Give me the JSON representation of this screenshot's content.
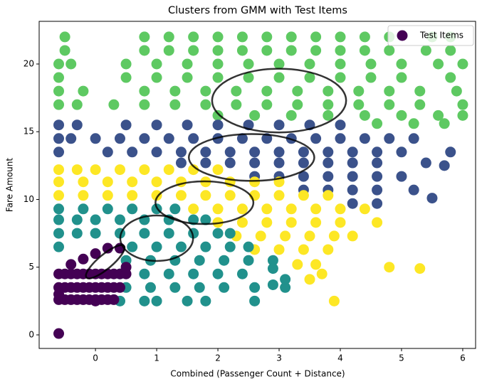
{
  "chart_data": {
    "type": "scatter",
    "title": "Clusters from GMM with Test Items",
    "x_label": "Combined (Passenger Count + Distance)",
    "y_label": "Fare Amount",
    "xlim": [
      -0.92,
      6.21
    ],
    "ylim": [
      -1.0,
      23.15
    ],
    "xticks": [
      0,
      1,
      2,
      3,
      4,
      5,
      6
    ],
    "yticks": [
      0,
      5,
      10,
      15,
      20
    ],
    "legend": "upper right",
    "series": [
      {
        "color": "#5ec962",
        "x": [
          -0.5,
          0.8,
          1.2,
          1.6,
          2.0,
          2.4,
          2.8,
          3.2,
          3.6,
          4.0,
          4.4,
          4.8,
          5.5,
          5.8,
          -0.5,
          0.8,
          1.2,
          1.6,
          2.0,
          2.4,
          2.8,
          3.2,
          3.6,
          4.0,
          4.4,
          4.8,
          5.4,
          5.8,
          -0.6,
          -0.4,
          0.5,
          1.0,
          1.5,
          2.0,
          2.5,
          3.0,
          3.5,
          4.0,
          4.5,
          5.0,
          5.6,
          6.0,
          -0.6,
          0.5,
          1.0,
          1.5,
          2.0,
          2.5,
          3.0,
          3.5,
          4.0,
          4.5,
          5.0,
          5.8,
          -0.6,
          -0.2,
          0.8,
          1.3,
          1.8,
          2.3,
          2.8,
          3.3,
          3.8,
          4.3,
          4.8,
          5.3,
          5.9,
          -0.6,
          -0.3,
          0.3,
          0.8,
          1.3,
          1.8,
          2.3,
          2.8,
          3.3,
          3.8,
          4.3,
          4.8,
          5.3,
          6.0,
          2.0,
          2.6,
          3.2,
          3.8,
          4.4,
          5.0,
          5.6,
          6.0,
          4.6,
          5.2,
          5.7
        ],
        "values": [
          22,
          22,
          22,
          22,
          22,
          22,
          22,
          22,
          22,
          22,
          22,
          22,
          22,
          22,
          21,
          21,
          21,
          21,
          21,
          21,
          21,
          21,
          21,
          21,
          21,
          21,
          21,
          21,
          20,
          20,
          20,
          20,
          20,
          20,
          20,
          20,
          20,
          20,
          20,
          20,
          20,
          20,
          19,
          19,
          19,
          19,
          19,
          19,
          19,
          19,
          19,
          19,
          19,
          19,
          18,
          18,
          18,
          18,
          18,
          18,
          18,
          18,
          18,
          18,
          18,
          18,
          18,
          17,
          17,
          17,
          17,
          17,
          17,
          17,
          17,
          17,
          17,
          17,
          17,
          17,
          17,
          16.2,
          16.2,
          16.2,
          16.2,
          16.2,
          16.2,
          16.2,
          16.2,
          15.6,
          15.6,
          15.6
        ]
      },
      {
        "color": "#3b528b",
        "x": [
          -0.6,
          -0.3,
          0.5,
          1.0,
          1.5,
          2.0,
          2.5,
          3.0,
          3.5,
          4.0,
          -0.6,
          -0.4,
          0,
          0.4,
          0.8,
          1.2,
          1.6,
          2.0,
          2.4,
          2.8,
          3.2,
          3.6,
          4.0,
          4.4,
          4.8,
          5.2,
          -0.6,
          0.2,
          0.6,
          1.0,
          1.4,
          1.8,
          2.2,
          2.6,
          3.0,
          3.4,
          3.8,
          4.2,
          4.6,
          5.0,
          5.8,
          1.4,
          1.8,
          2.2,
          2.6,
          3.0,
          3.4,
          3.8,
          4.2,
          4.6,
          5.4,
          2.6,
          3.0,
          3.4,
          3.8,
          4.2,
          4.6,
          5.0,
          3.4,
          3.8,
          4.2,
          4.6,
          5.2,
          4.2,
          4.6,
          5.5,
          5.7
        ],
        "values": [
          15.5,
          15.5,
          15.5,
          15.5,
          15.5,
          15.5,
          15.5,
          15.5,
          15.5,
          15.5,
          14.5,
          14.5,
          14.5,
          14.5,
          14.5,
          14.5,
          14.5,
          14.5,
          14.5,
          14.5,
          14.5,
          14.5,
          14.5,
          14.5,
          14.5,
          14.5,
          13.5,
          13.5,
          13.5,
          13.5,
          13.5,
          13.5,
          13.5,
          13.5,
          13.5,
          13.5,
          13.5,
          13.5,
          13.5,
          13.5,
          13.5,
          12.7,
          12.7,
          12.7,
          12.7,
          12.7,
          12.7,
          12.7,
          12.7,
          12.7,
          12.7,
          11.7,
          11.7,
          11.7,
          11.7,
          11.7,
          11.7,
          11.7,
          10.7,
          10.7,
          10.7,
          10.7,
          10.7,
          9.7,
          9.7,
          10.1,
          12.5
        ]
      },
      {
        "color": "#fde725",
        "x": [
          -0.6,
          -0.3,
          0,
          0.4,
          0.8,
          1.2,
          1.6,
          2.0,
          -0.6,
          -0.2,
          0.2,
          0.6,
          1.0,
          1.4,
          1.8,
          2.2,
          2.6,
          3.0,
          -0.6,
          -0.2,
          0.2,
          0.6,
          1.0,
          1.4,
          1.8,
          2.2,
          2.6,
          3.0,
          3.4,
          3.8,
          1.6,
          2.0,
          2.4,
          2.8,
          3.2,
          3.6,
          4.0,
          4.4,
          2.0,
          2.4,
          2.8,
          3.2,
          3.6,
          4.0,
          4.6,
          2.3,
          2.7,
          3.1,
          3.5,
          3.9,
          4.2,
          2.6,
          3.0,
          3.4,
          3.8,
          3.3,
          3.6,
          4.8,
          5.3,
          3.9,
          3.5,
          3.7
        ],
        "values": [
          12.2,
          12.2,
          12.2,
          12.2,
          12.2,
          12.2,
          12.2,
          12.2,
          11.3,
          11.3,
          11.3,
          11.3,
          11.3,
          11.3,
          11.3,
          11.3,
          11.3,
          11.3,
          10.3,
          10.3,
          10.3,
          10.3,
          10.3,
          10.3,
          10.3,
          10.3,
          10.3,
          10.3,
          10.3,
          10.3,
          9.3,
          9.3,
          9.3,
          9.3,
          9.3,
          9.3,
          9.3,
          9.3,
          8.3,
          8.3,
          8.3,
          8.3,
          8.3,
          8.3,
          8.3,
          7.3,
          7.3,
          7.3,
          7.3,
          7.3,
          7.3,
          6.3,
          6.3,
          6.3,
          6.3,
          5.2,
          5.2,
          5.0,
          4.9,
          2.5,
          4.1,
          4.5
        ]
      },
      {
        "color": "#21918c",
        "x": [
          -0.6,
          -0.2,
          0.2,
          0.6,
          1.0,
          1.3,
          -0.6,
          -0.3,
          0,
          0.4,
          0.8,
          1.2,
          1.6,
          1.8,
          -0.6,
          -0.3,
          0,
          0.4,
          0.8,
          1.2,
          1.6,
          2.0,
          2.2,
          -0.6,
          0.6,
          1.0,
          1.4,
          1.8,
          2.2,
          2.5,
          0.5,
          0.9,
          1.3,
          1.7,
          2.1,
          2.5,
          2.9,
          0.4,
          0.8,
          1.2,
          1.6,
          2.0,
          2.4,
          0.5,
          0.9,
          1.3,
          1.7,
          2.1,
          2.6,
          3.1,
          0.4,
          0.8,
          1.0,
          1.5,
          1.8,
          2.6,
          2.9,
          3.1,
          2.9
        ],
        "values": [
          9.3,
          9.3,
          9.3,
          9.3,
          9.3,
          9.3,
          8.5,
          8.5,
          8.5,
          8.5,
          8.5,
          8.5,
          8.5,
          8.5,
          7.5,
          7.5,
          7.5,
          7.5,
          7.5,
          7.5,
          7.5,
          7.5,
          7.5,
          6.5,
          6.5,
          6.5,
          6.5,
          6.5,
          6.5,
          6.5,
          5.5,
          5.5,
          5.5,
          5.5,
          5.5,
          5.5,
          5.5,
          4.5,
          4.5,
          4.5,
          4.5,
          4.5,
          4.5,
          3.5,
          3.5,
          3.5,
          3.5,
          3.5,
          3.5,
          3.5,
          2.5,
          2.5,
          2.5,
          2.5,
          2.5,
          2.5,
          3.7,
          4.1,
          4.9
        ]
      },
      {
        "color": "#440154",
        "x": [
          -0.6,
          -0.5,
          -0.4,
          -0.3,
          -0.2,
          -0.1,
          0,
          0.1,
          0.2,
          0.3,
          -0.6,
          -0.5,
          -0.4,
          -0.3,
          -0.2,
          -0.1,
          0,
          0.1,
          0.2,
          0.3,
          0.4,
          -0.6,
          -0.5,
          -0.4,
          -0.3,
          -0.2,
          -0.1,
          0,
          0.1,
          0.2,
          0.3,
          0.4,
          0.5,
          -0.4,
          -0.2,
          0,
          0.2,
          0.4,
          -0.6,
          0,
          0.5
        ],
        "values": [
          2.6,
          2.6,
          2.6,
          2.6,
          2.6,
          2.6,
          2.6,
          2.6,
          2.6,
          2.6,
          3.5,
          3.5,
          3.5,
          3.5,
          3.5,
          3.5,
          3.5,
          3.5,
          3.5,
          3.5,
          3.5,
          4.5,
          4.5,
          4.5,
          4.5,
          4.5,
          4.5,
          4.5,
          4.5,
          4.5,
          4.5,
          4.5,
          4.5,
          5.2,
          5.6,
          6.0,
          6.4,
          6.4,
          3.0,
          2.5,
          5.0
        ]
      },
      {
        "name": "Test Items",
        "color": "#440154",
        "x": [
          -0.6
        ],
        "values": [
          0.1
        ]
      }
    ],
    "ellipses": [
      {
        "x": 3.0,
        "y": 17.3,
        "width": 2.19,
        "height": 4.7,
        "angle": 0
      },
      {
        "x": 2.55,
        "y": 13.1,
        "width": 2.05,
        "height": 3.46,
        "angle": 0
      },
      {
        "x": 1.78,
        "y": 9.76,
        "width": 1.6,
        "height": 3.15,
        "angle": 0
      },
      {
        "x": 1.0,
        "y": 7.14,
        "width": 1.19,
        "height": 3.36,
        "angle": 0
      },
      {
        "x": 0.16,
        "y": 5.4,
        "width": 0.8,
        "height": 1.05,
        "angle": 40
      }
    ],
    "ellipse_color": "#000000"
  }
}
